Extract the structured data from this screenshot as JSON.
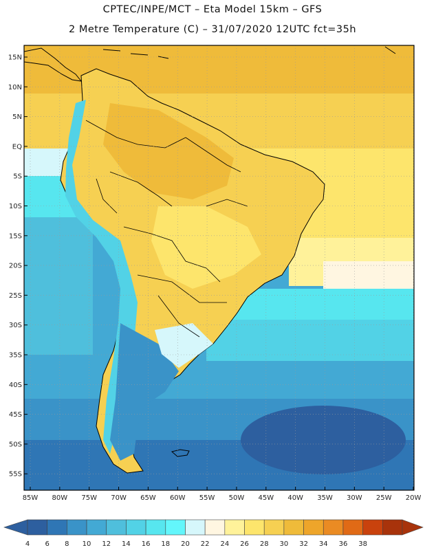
{
  "header": {
    "line1": "CPTEC/INPE/MCT –  Eta Model 15km – GFS",
    "line2": "2 Metre Temperature (C) – 31/07/2020 12UTC fct=35h"
  },
  "map": {
    "lat_labels": [
      "15N",
      "10N",
      "5N",
      "EQ",
      "5S",
      "10S",
      "15S",
      "20S",
      "25S",
      "30S",
      "35S",
      "40S",
      "45S",
      "50S",
      "55S"
    ],
    "lon_labels": [
      "85W",
      "80W",
      "75W",
      "70W",
      "65W",
      "60W",
      "55W",
      "50W",
      "45W",
      "40W",
      "35W",
      "30W",
      "25W",
      "20W"
    ],
    "land_border_color": "#000000",
    "gridline_color": "#9a9a9a"
  },
  "colorbar": {
    "labels": [
      "4",
      "6",
      "8",
      "10",
      "12",
      "14",
      "16",
      "18",
      "20",
      "22",
      "24",
      "26",
      "28",
      "30",
      "32",
      "34",
      "36",
      "38"
    ],
    "colors": [
      "#2d5f9f",
      "#2f76b5",
      "#3a93c8",
      "#43a9d4",
      "#4fbfdc",
      "#52d2e6",
      "#57e6ef",
      "#63f6fb",
      "#d6f7fb",
      "#fff6e1",
      "#fff29a",
      "#fde56c",
      "#f6d052",
      "#efbb3a",
      "#eea52a",
      "#ea8b23",
      "#e06a16",
      "#c9420d",
      "#a8330b"
    ]
  }
}
